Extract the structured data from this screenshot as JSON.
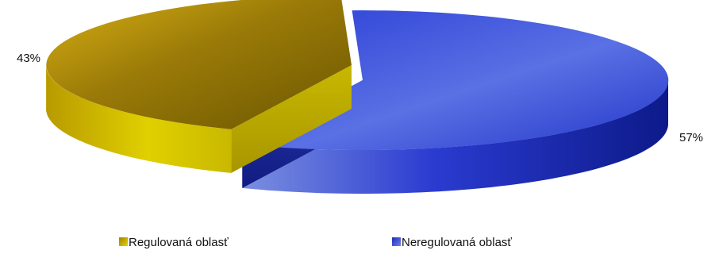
{
  "chart_data": {
    "type": "pie",
    "title": "",
    "categories": [
      "Regulovaná oblasť",
      "Neregulovaná oblasť"
    ],
    "values": [
      43,
      57
    ],
    "data_labels": [
      "43%",
      "57%"
    ],
    "colors": [
      "#d4b400",
      "#1f2fc4"
    ],
    "legend_placement": "bottom",
    "three_d": true,
    "exploded": true
  }
}
